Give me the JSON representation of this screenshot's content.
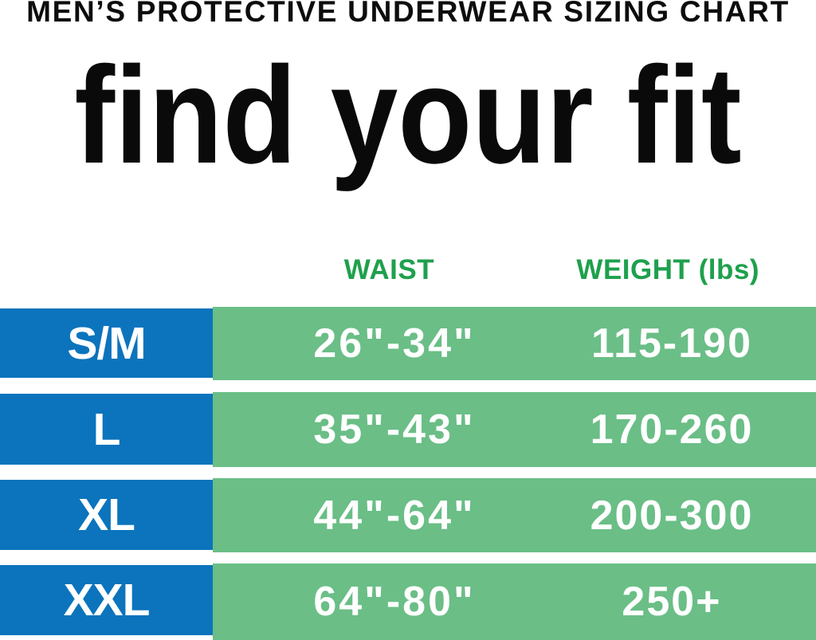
{
  "chart_data": {
    "type": "table",
    "title": "MEN’S PROTECTIVE UNDERWEAR SIZING CHART",
    "subtitle": "find your fit",
    "columns": {
      "size": "",
      "waist": "WAIST",
      "weight": "WEIGHT (lbs)"
    },
    "rows": [
      {
        "size": "S/M",
        "waist": "26\"-34\"",
        "weight": "115-190"
      },
      {
        "size": "L",
        "waist": "35\"-43\"",
        "weight": "170-260"
      },
      {
        "size": "XL",
        "waist": "44\"-64\"",
        "weight": "200-300"
      },
      {
        "size": "XXL",
        "waist": "64\"-80\"",
        "weight": "250+"
      }
    ],
    "layout": {
      "legend": "none",
      "grid": "off",
      "header_text_color": "#1fa04d",
      "row_band_color": "#6abe86",
      "size_cell_color": "#0b74bd",
      "value_text_color": "#ffffff",
      "title_text_color": "#0d0d0d"
    }
  },
  "colors": {
    "blue": "#0b74bd",
    "row_green": "#6abe86",
    "header_green": "#1fa04d",
    "near_black": "#0d0d0d",
    "white": "#ffffff"
  }
}
